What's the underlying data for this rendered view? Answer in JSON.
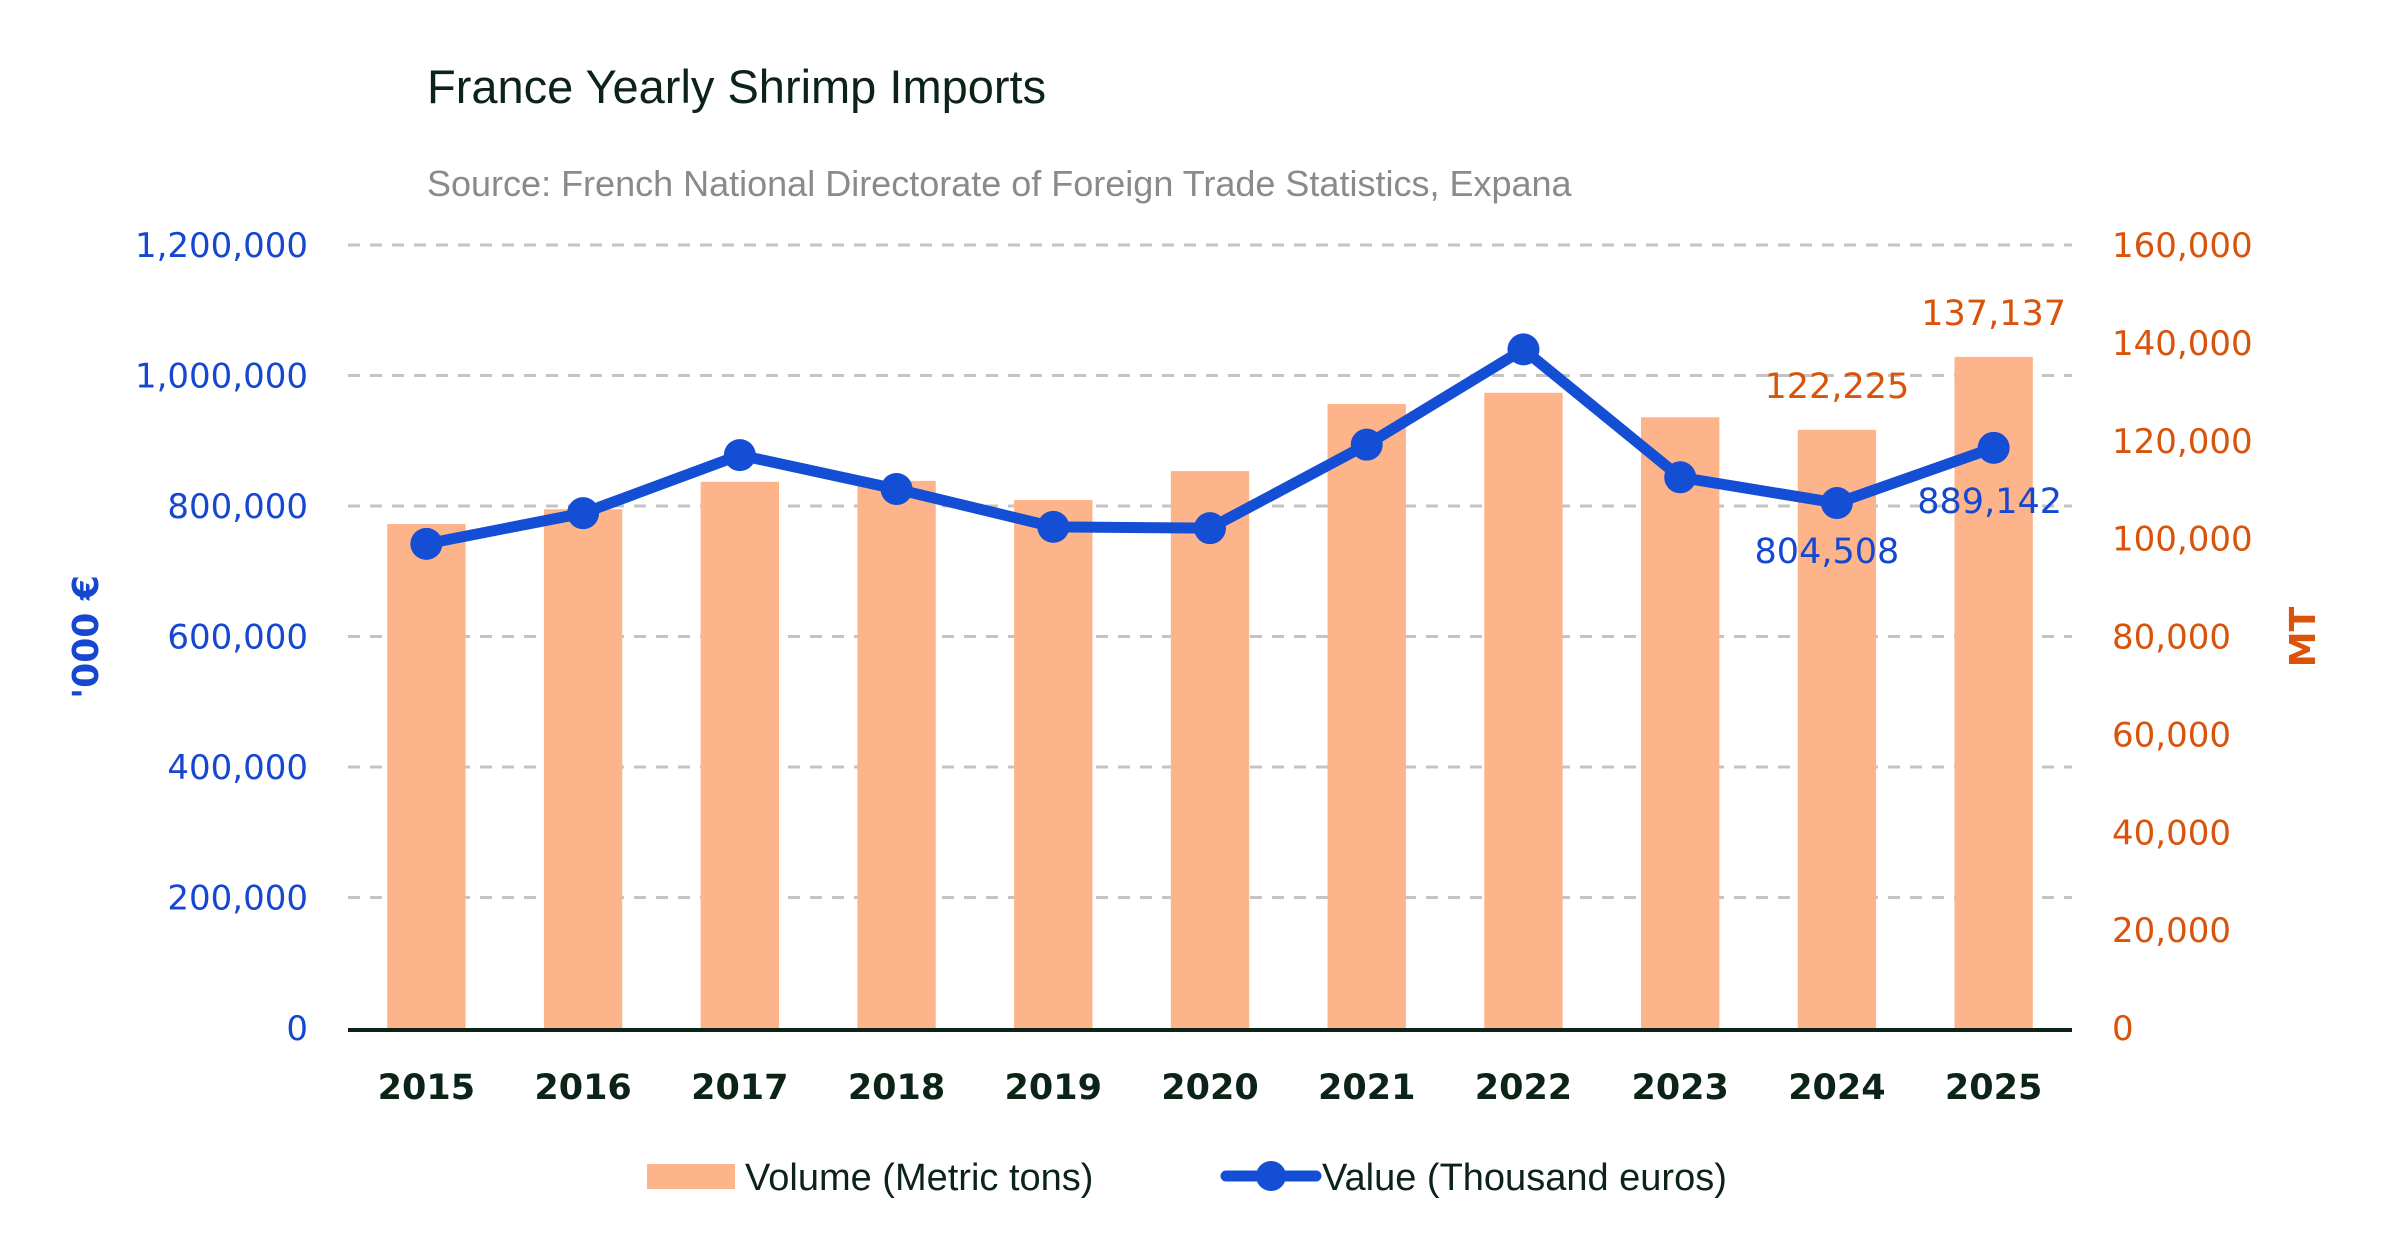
{
  "chart_data": {
    "type": "bar+line",
    "title": "France Yearly Shrimp Imports",
    "subtitle": "Source: French National Directorate of Foreign Trade Statistics, Expana",
    "categories": [
      "2015",
      "2016",
      "2017",
      "2018",
      "2019",
      "2020",
      "2021",
      "2022",
      "2023",
      "2024",
      "2025"
    ],
    "series": [
      {
        "name": "Volume (Metric tons)",
        "type": "bar",
        "axis": "right",
        "color": "#FDB48A",
        "values": [
          103000,
          106000,
          111600,
          111800,
          107900,
          113800,
          127500,
          129800,
          124800,
          122225,
          137137
        ]
      },
      {
        "name": "Value (Thousand euros)",
        "type": "line",
        "axis": "left",
        "color": "#134ED4",
        "values": [
          742000,
          789000,
          878000,
          826000,
          768000,
          766000,
          894000,
          1040000,
          844000,
          804508,
          889142
        ]
      }
    ],
    "left_axis": {
      "title": "'000 €",
      "range": [
        0,
        1200000
      ],
      "ticks": [
        0,
        200000,
        400000,
        600000,
        800000,
        1000000,
        1200000
      ],
      "tick_labels": [
        "0",
        "200,000",
        "400,000",
        "600,000",
        "800,000",
        "1,000,000",
        "1,200,000"
      ],
      "color": "#1547D0"
    },
    "right_axis": {
      "title": "MT",
      "range": [
        0,
        160000
      ],
      "ticks": [
        0,
        20000,
        40000,
        60000,
        80000,
        100000,
        120000,
        140000,
        160000
      ],
      "tick_labels": [
        "0",
        "20,000",
        "40,000",
        "60,000",
        "80,000",
        "100,000",
        "120,000",
        "140,000",
        "160,000"
      ],
      "color": "#D9530B"
    },
    "data_labels": [
      {
        "series": "Volume (Metric tons)",
        "category": "2024",
        "text": "122,225"
      },
      {
        "series": "Volume (Metric tons)",
        "category": "2025",
        "text": "137,137"
      },
      {
        "series": "Value (Thousand euros)",
        "category": "2024",
        "text": "804,508"
      },
      {
        "series": "Value (Thousand euros)",
        "category": "2025",
        "text": "889,142"
      }
    ],
    "grid": true,
    "legend": {
      "position": "bottom",
      "entries": [
        "Volume (Metric tons)",
        "Value (Thousand euros)"
      ]
    }
  }
}
